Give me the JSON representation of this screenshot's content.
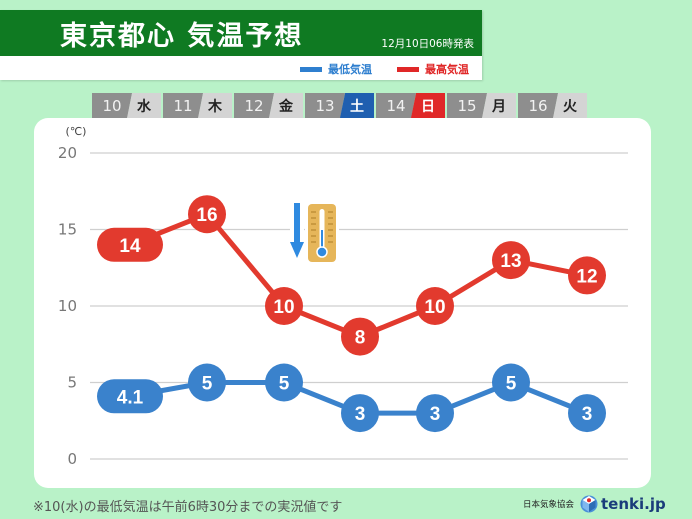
{
  "header": {
    "title": "東京都心 気温予想",
    "issued": "12月10日06時発表",
    "legend": {
      "low": "最低気温",
      "high": "最高気温"
    }
  },
  "days": [
    {
      "num": "10",
      "weekday": "水",
      "type": "weekday"
    },
    {
      "num": "11",
      "weekday": "木",
      "type": "weekday"
    },
    {
      "num": "12",
      "weekday": "金",
      "type": "weekday"
    },
    {
      "num": "13",
      "weekday": "土",
      "type": "sat"
    },
    {
      "num": "14",
      "weekday": "日",
      "type": "sun"
    },
    {
      "num": "15",
      "weekday": "月",
      "type": "weekday"
    },
    {
      "num": "16",
      "weekday": "火",
      "type": "weekday"
    }
  ],
  "colors": {
    "high": "#e23a2e",
    "low": "#3a82cc",
    "sat": "#1f5fb0",
    "sun": "#e02828",
    "header": "#0f7a22",
    "background": "#b9f2c8"
  },
  "footer": {
    "note": "※10(水)の最低気温は午前6時30分までの実況値です",
    "org": "日本気象協会",
    "brand": "tenki.jp"
  },
  "chart_data": {
    "type": "line",
    "title": "東京都心 気温予想",
    "subtitle": "12月10日06時発表",
    "categories": [
      "10 水",
      "11 木",
      "12 金",
      "13 土",
      "14 日",
      "15 月",
      "16 火"
    ],
    "series": [
      {
        "name": "最高気温",
        "color": "#e23a2e",
        "values": [
          14,
          16,
          10,
          8,
          10,
          13,
          12
        ],
        "labels": [
          "14",
          "16",
          "10",
          "8",
          "10",
          "13",
          "12"
        ]
      },
      {
        "name": "最低気温",
        "color": "#3a82cc",
        "values": [
          4.1,
          5,
          5,
          3,
          3,
          5,
          3
        ],
        "labels": [
          "4.1",
          "5",
          "5",
          "3",
          "3",
          "5",
          "3"
        ]
      }
    ],
    "ylabel": "(℃)",
    "yticks": [
      0,
      5,
      10,
      15,
      20
    ],
    "ylim": [
      0,
      20
    ],
    "grid": true,
    "legend_position": "top-right",
    "annotations": [
      {
        "type": "icon",
        "name": "temperature-falling",
        "near": "12 金"
      }
    ]
  }
}
